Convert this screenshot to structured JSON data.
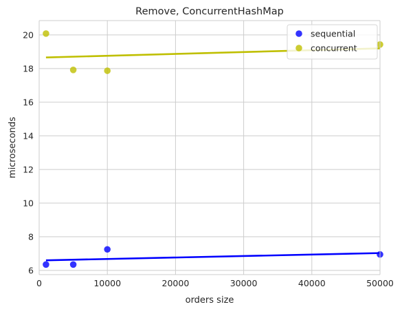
{
  "chart_data": {
    "type": "scatter",
    "title": "Remove, ConcurrentHashMap",
    "xlabel": "orders size",
    "ylabel": "microseconds",
    "xlim": [
      0,
      50000
    ],
    "ylim": [
      5.75,
      20.85
    ],
    "xticks": [
      0,
      10000,
      20000,
      30000,
      40000,
      50000
    ],
    "yticks": [
      6,
      8,
      10,
      12,
      14,
      16,
      18,
      20
    ],
    "grid": true,
    "legend_position": "top-right",
    "series": [
      {
        "name": "sequential",
        "color": "#0000ff",
        "points": [
          {
            "x": 1000,
            "y": 6.35
          },
          {
            "x": 5000,
            "y": 6.35
          },
          {
            "x": 10000,
            "y": 7.25
          },
          {
            "x": 50000,
            "y": 6.95
          }
        ],
        "fit_line": {
          "x": [
            1000,
            50000
          ],
          "y": [
            6.6,
            7.03
          ]
        }
      },
      {
        "name": "concurrent",
        "color": "#bfbf00",
        "points": [
          {
            "x": 1000,
            "y": 20.08
          },
          {
            "x": 5000,
            "y": 17.92
          },
          {
            "x": 10000,
            "y": 17.87
          },
          {
            "x": 50000,
            "y": 19.43
          }
        ],
        "fit_line": {
          "x": [
            1000,
            50000
          ],
          "y": [
            18.66,
            19.2
          ]
        }
      }
    ]
  }
}
